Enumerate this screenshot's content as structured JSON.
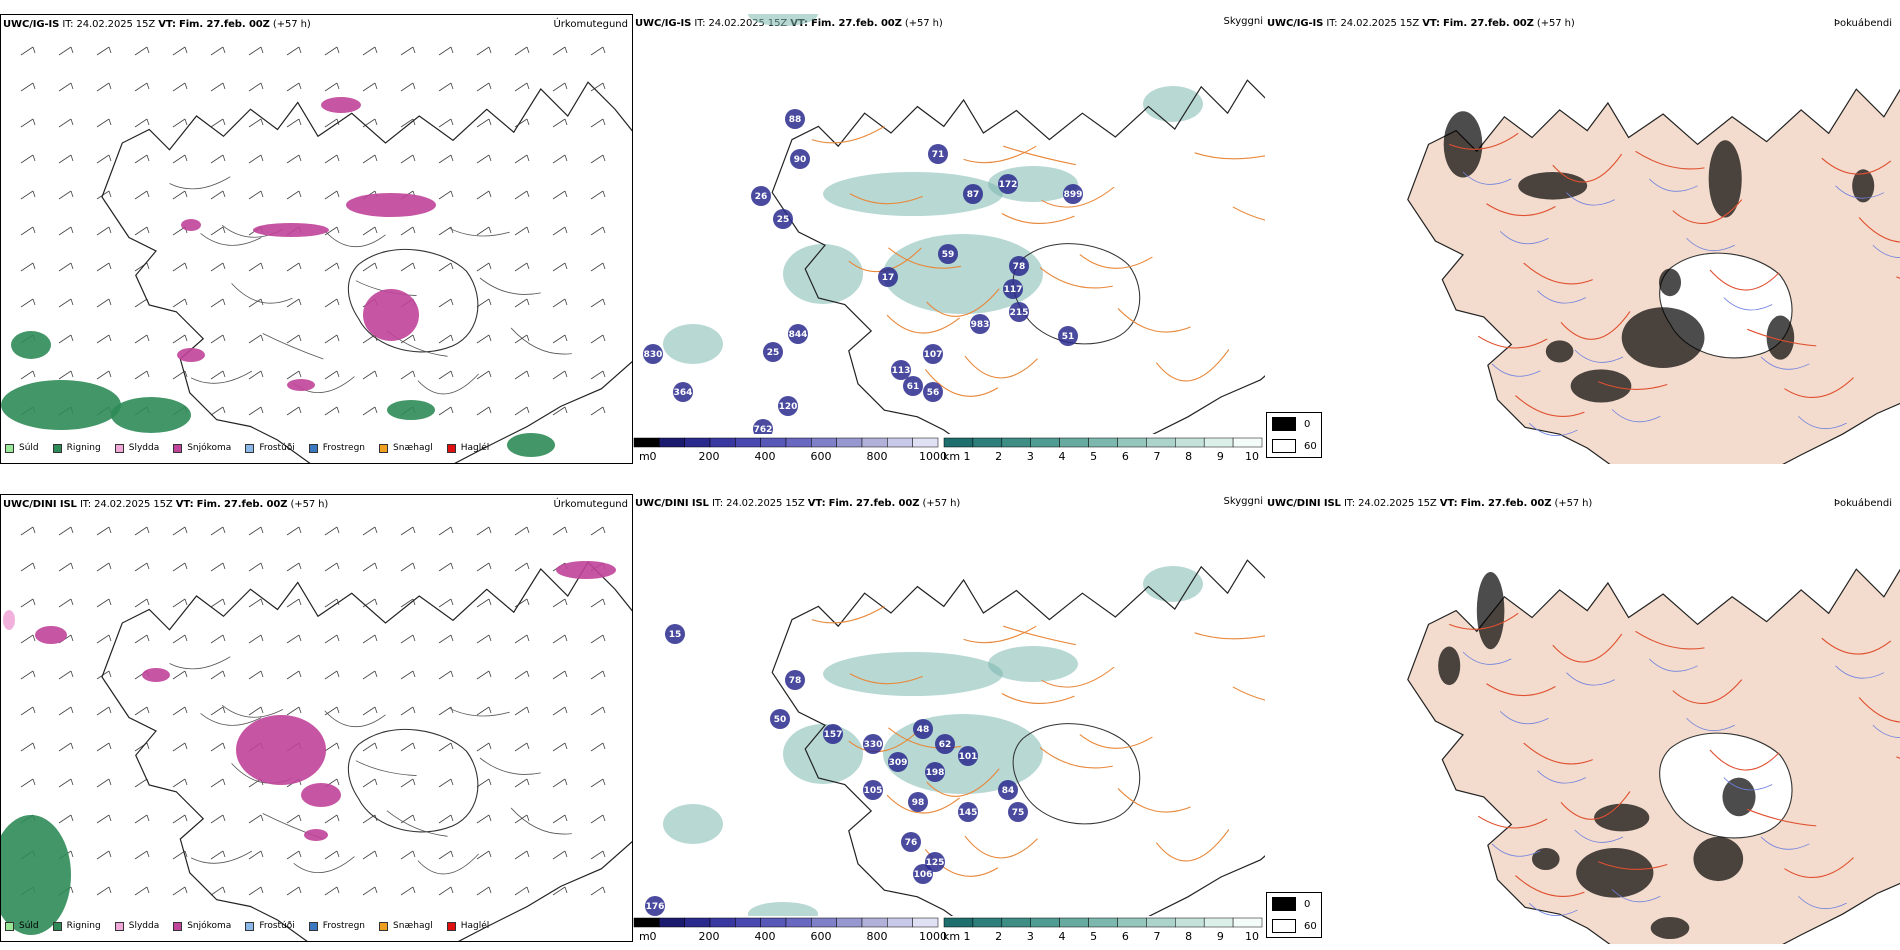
{
  "rows": [
    {
      "precip": {
        "model": "UWC/IG-IS",
        "it_label": "IT:",
        "it_value": "24.02.2025 15Z",
        "vt_label": "VT:",
        "vt_value": "Fim. 27.feb. 00Z",
        "lead": "(+57 h)",
        "title": "Úrkomutegund"
      },
      "cloud": {
        "model": "UWC/IG-IS",
        "it_label": "IT:",
        "it_value": "24.02.2025 15Z",
        "vt_label": "VT:",
        "vt_value": "Fim. 27.feb. 00Z",
        "lead": "(+57 h)",
        "title": "Skyggni",
        "labels": [
          "88",
          "90",
          "26",
          "25",
          "71",
          "87",
          "172",
          "899",
          "59",
          "78",
          "117",
          "215",
          "983",
          "51",
          "17",
          "844",
          "25",
          "107",
          "113",
          "61",
          "56",
          "830",
          "364",
          "120",
          "762"
        ]
      },
      "fog": {
        "model": "UWC/IG-IS",
        "it_label": "IT:",
        "it_value": "24.02.2025 15Z",
        "vt_label": "VT:",
        "vt_value": "Fim. 27.feb. 00Z",
        "lead": "(+57 h)",
        "title": "Þokuábendi"
      }
    },
    {
      "precip": {
        "model": "UWC/DINI ISL",
        "it_label": "IT:",
        "it_value": "24.02.2025 15Z",
        "vt_label": "VT:",
        "vt_value": "Fim. 27.feb. 00Z",
        "lead": "(+57 h)",
        "title": "Úrkomutegund"
      },
      "cloud": {
        "model": "UWC/DINI ISL",
        "it_label": "IT:",
        "it_value": "24.02.2025 15Z",
        "vt_label": "VT:",
        "vt_value": "Fim. 27.feb. 00Z",
        "lead": "(+57 h)",
        "title": "Skyggni",
        "labels": [
          "15",
          "78",
          "50",
          "157",
          "330",
          "62",
          "48",
          "309",
          "198",
          "101",
          "105",
          "98",
          "84",
          "75",
          "145",
          "76",
          "125",
          "106",
          "176"
        ]
      },
      "fog": {
        "model": "UWC/DINI ISL",
        "it_label": "IT:",
        "it_value": "24.02.2025 15Z",
        "vt_label": "VT:",
        "vt_value": "Fim. 27.feb. 00Z",
        "lead": "(+57 h)",
        "title": "Þokuábendi"
      }
    }
  ],
  "precip_legend": [
    {
      "label": "Súld",
      "color": "#98e898"
    },
    {
      "label": "Rigning",
      "color": "#2e8b57"
    },
    {
      "label": "Slydda",
      "color": "#f0a8d8"
    },
    {
      "label": "Snjókoma",
      "color": "#c0449a"
    },
    {
      "label": "Frostúði",
      "color": "#8ab8e8"
    },
    {
      "label": "Frostregn",
      "color": "#3a78c0"
    },
    {
      "label": "Snæhagl",
      "color": "#f0a020"
    },
    {
      "label": "Haglél",
      "color": "#e01010"
    }
  ],
  "cloudbase_bar": {
    "unit": "m",
    "ticks": [
      "0",
      "200",
      "400",
      "600",
      "800",
      "1000"
    ],
    "colors": [
      "#000000",
      "#1a1a6e",
      "#2a2a8e",
      "#3838a0",
      "#4848b0",
      "#5858b8",
      "#6868c0",
      "#8080c8",
      "#9898d0",
      "#b0b0d8",
      "#c8c8e8",
      "#e0e0f4"
    ]
  },
  "visibility_bar": {
    "unit": "km",
    "ticks": [
      "1",
      "2",
      "3",
      "4",
      "5",
      "6",
      "7",
      "8",
      "9",
      "10"
    ],
    "colors": [
      "#1e6e6e",
      "#2e7e7a",
      "#3e8e86",
      "#509c92",
      "#66aaa0",
      "#7cb8ae",
      "#94c6bc",
      "#acd4ca",
      "#c4e2da",
      "#dcf0ea",
      "#f4fcfa"
    ]
  },
  "fog_legend": [
    {
      "label": "0",
      "color": "#000000"
    },
    {
      "label": "60",
      "color": "#ffffff"
    }
  ],
  "colors": {
    "road_orange": "#e8883a",
    "road_red": "#e05030",
    "land_fog": "#f3dccd",
    "river_blue": "#7080e0",
    "precip_roads": "#555555"
  }
}
